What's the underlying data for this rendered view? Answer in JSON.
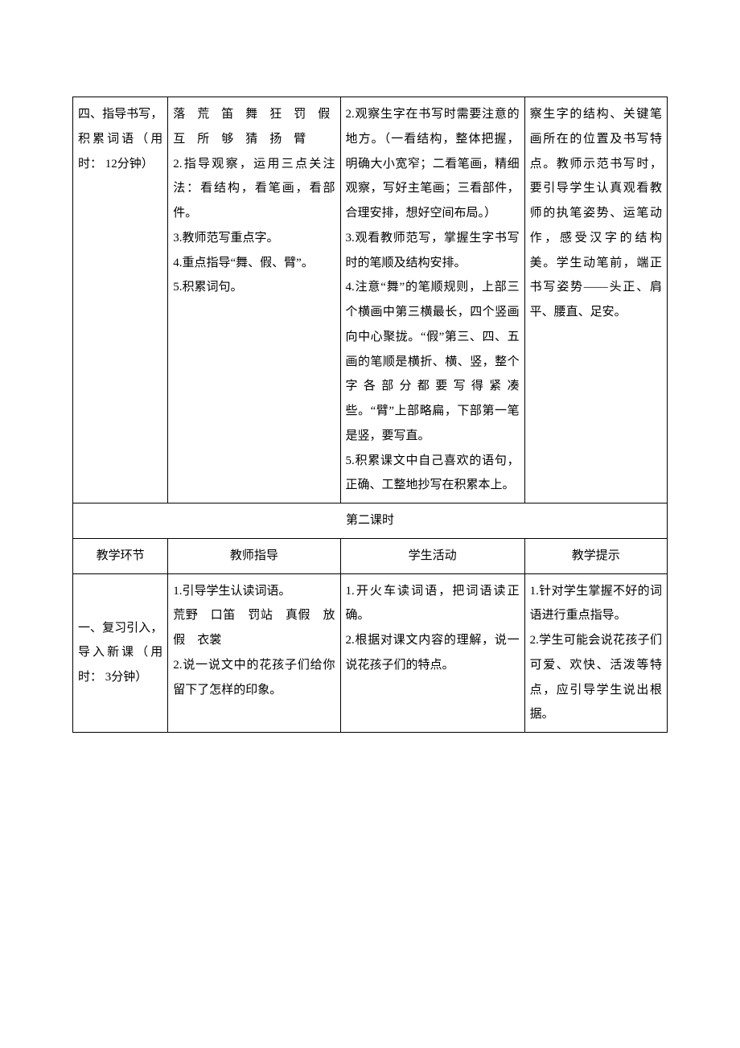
{
  "row1": {
    "c1": "四、指导书写，积累词语（用时： 12分钟）",
    "c2": "落　荒　笛　舞　狂　罚　假\n互　所　够　猜　扬　臂\n2.指导观察，运用三点关注法：看结构，看笔画，看部件。\n3.教师范写重点字。\n4.重点指导“舞、假、臂”。\n5.积累词句。",
    "c3": "2.观察生字在书写时需要注意的地方。（一看结构，整体把握，明确大小宽窄；二看笔画，精细观察，写好主笔画；三看部件，合理安排，想好空间布局。）\n3.观看教师范写，掌握生字书写时的笔顺及结构安排。\n4.注意“舞”的笔顺规则，上部三个横画中第三横最长，四个竖画向中心聚拢。“假”第三、四、五画的笔顺是横折、横、竖，整个字各部分都要写得紧凑些。“臂”上部略扁，下部第一笔是竖，要写直。\n5.积累课文中自己喜欢的语句，正确、工整地抄写在积累本上。",
    "c4": "察生字的结构、关键笔画所在的位置及书写特点。教师示范书写时，要引导学生认真观看教师的执笔姿势、运笔动作，感受汉字的结构美。学生动笔前，端正书写姿势——头正、肩平、腰直、足安。"
  },
  "row2": {
    "title": "第二课时"
  },
  "row3": {
    "c1": "教学环节",
    "c2": "教师指导",
    "c3": "学生活动",
    "c4": "教学提示"
  },
  "row4": {
    "c1": "一、复习引入，导入新课（用时： 3分钟）",
    "c2": "1.引导学生认读词语。\n荒野　口笛　罚站　真假　放假　衣裳\n2.说一说文中的花孩子们给你留下了怎样的印象。",
    "c3": "1.开火车读词语，把词语读正确。\n2.根据对课文内容的理解，说一说花孩子们的特点。",
    "c4": "1.针对学生掌握不好的词语进行重点指导。\n2.学生可能会说花孩子们可爱、欢快、活泼等特点，应引导学生说出根据。"
  }
}
